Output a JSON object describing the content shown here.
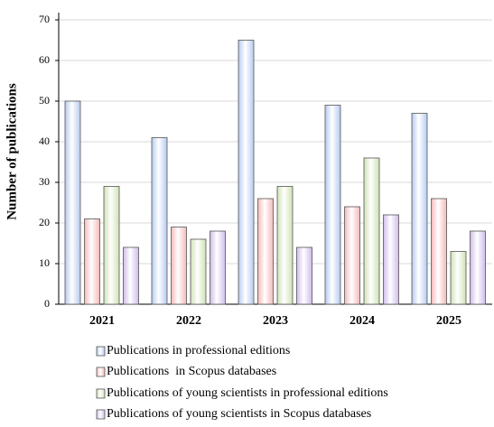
{
  "chart_data": {
    "type": "bar",
    "y_label": "Number of publications",
    "categories": [
      "2021",
      "2022",
      "2023",
      "2024",
      "2025"
    ],
    "series": [
      {
        "name": "Publications in professional editions",
        "color": "#b7caf0",
        "values": [
          50,
          41,
          65,
          49,
          47
        ]
      },
      {
        "name": "Publications  in Scopus databases",
        "color": "#f5b9b9",
        "values": [
          21,
          19,
          26,
          24,
          26
        ]
      },
      {
        "name": "Publications of young scientists in professional editions",
        "color": "#cfe2b5",
        "values": [
          29,
          16,
          29,
          36,
          13
        ]
      },
      {
        "name": "Publications of young scientists in Scopus databases",
        "color": "#cfbcec",
        "values": [
          14,
          18,
          14,
          22,
          18
        ]
      }
    ],
    "ylim": [
      0,
      70
    ],
    "yticks": [
      0,
      10,
      20,
      30,
      40,
      50,
      60,
      70
    ],
    "grid": true,
    "legend": "bottom"
  }
}
